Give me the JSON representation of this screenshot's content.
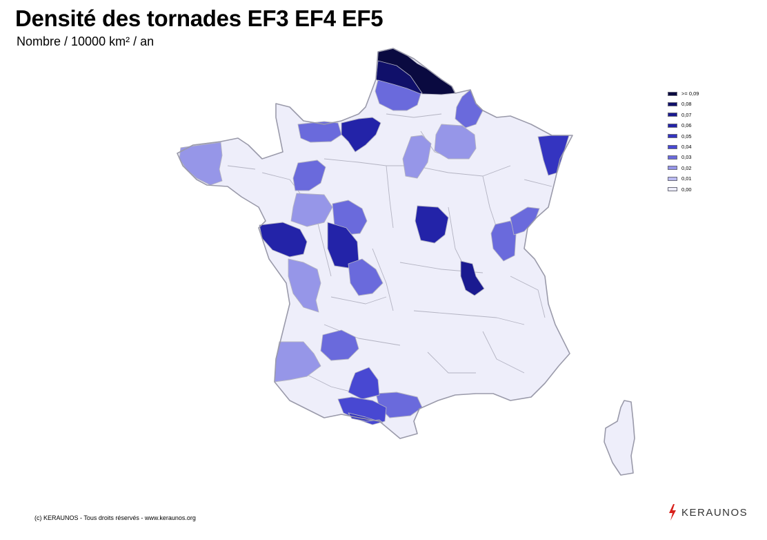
{
  "map": {
    "title": "Densité des tornades EF3 EF4 EF5",
    "subtitle": "Nombre / 10000 km² / an",
    "legend": [
      {
        "label": ">= 0,09",
        "color": "#0a0a40"
      },
      {
        "label": "0,08",
        "color": "#10106a"
      },
      {
        "label": "0,07",
        "color": "#1a1a90"
      },
      {
        "label": "0,06",
        "color": "#2323a8"
      },
      {
        "label": "0,05",
        "color": "#3434c0"
      },
      {
        "label": "0,04",
        "color": "#4848d2"
      },
      {
        "label": "0,03",
        "color": "#6a6adc"
      },
      {
        "label": "0,02",
        "color": "#9696e8"
      },
      {
        "label": "0,01",
        "color": "#bcbcf2"
      },
      {
        "label": "0,00",
        "color": "#eeeefa"
      }
    ]
  },
  "footer": {
    "copyright": "(c) KERAUNOS - Tous droits réservés - www.keraunos.org",
    "brand": "KERAUNOS",
    "brand_color": "#d8221c"
  }
}
